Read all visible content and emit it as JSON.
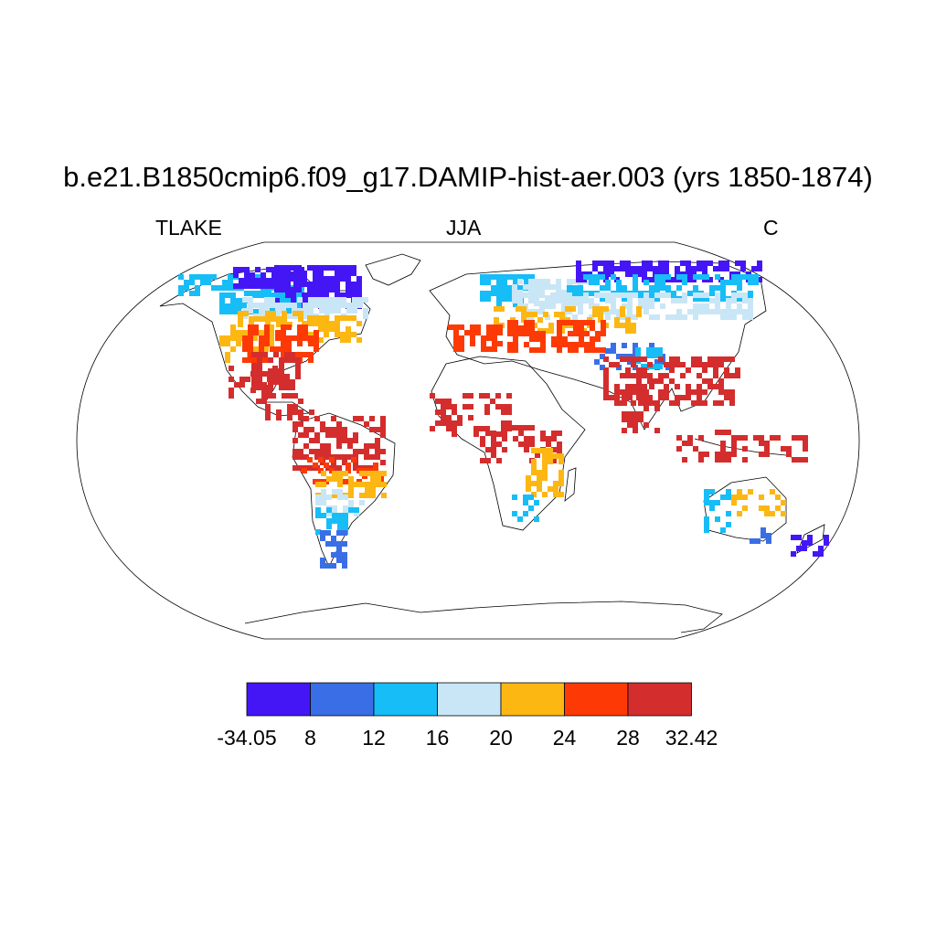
{
  "title": "b.e21.B1850cmip6.f09_g17.DAMIP-hist-aer.003 (yrs 1850-1874)",
  "left_label": "TLAKE",
  "center_label": "JJA",
  "right_label": "C",
  "projection": "Robinson",
  "colorbar": {
    "bins": [
      {
        "color": "#4416f6"
      },
      {
        "color": "#3a6ee6"
      },
      {
        "color": "#17bdf7"
      },
      {
        "color": "#c9e6f6"
      },
      {
        "color": "#fcb713"
      },
      {
        "color": "#fd3a05"
      },
      {
        "color": "#d42d2d"
      }
    ],
    "labels": [
      "-34.05",
      "8",
      "12",
      "16",
      "20",
      "24",
      "28",
      "32.42"
    ]
  }
}
